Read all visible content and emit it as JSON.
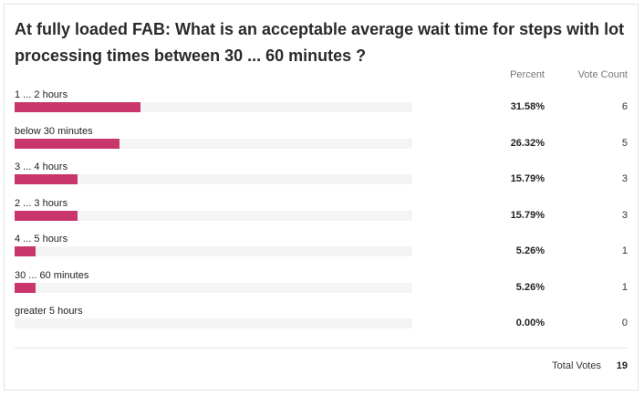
{
  "poll": {
    "title": "At fully loaded FAB: What is an acceptable average wait time for steps with lot processing times between 30 ... 60 minutes ?",
    "headers": {
      "percent": "Percent",
      "count": "Vote Count"
    },
    "bar_color": "#c9366b",
    "options": [
      {
        "label": "1 ... 2 hours",
        "percent": "31.58%",
        "percent_value": 31.58,
        "count": "6"
      },
      {
        "label": "below 30 minutes",
        "percent": "26.32%",
        "percent_value": 26.32,
        "count": "5"
      },
      {
        "label": "3 ... 4 hours",
        "percent": "15.79%",
        "percent_value": 15.79,
        "count": "3"
      },
      {
        "label": "2 ... 3 hours",
        "percent": "15.79%",
        "percent_value": 15.79,
        "count": "3"
      },
      {
        "label": "4 ... 5 hours",
        "percent": "5.26%",
        "percent_value": 5.26,
        "count": "1"
      },
      {
        "label": "30 ... 60 minutes",
        "percent": "5.26%",
        "percent_value": 5.26,
        "count": "1"
      },
      {
        "label": "greater 5 hours",
        "percent": "0.00%",
        "percent_value": 0,
        "count": "0"
      }
    ],
    "total_label": "Total Votes",
    "total_value": "19"
  }
}
